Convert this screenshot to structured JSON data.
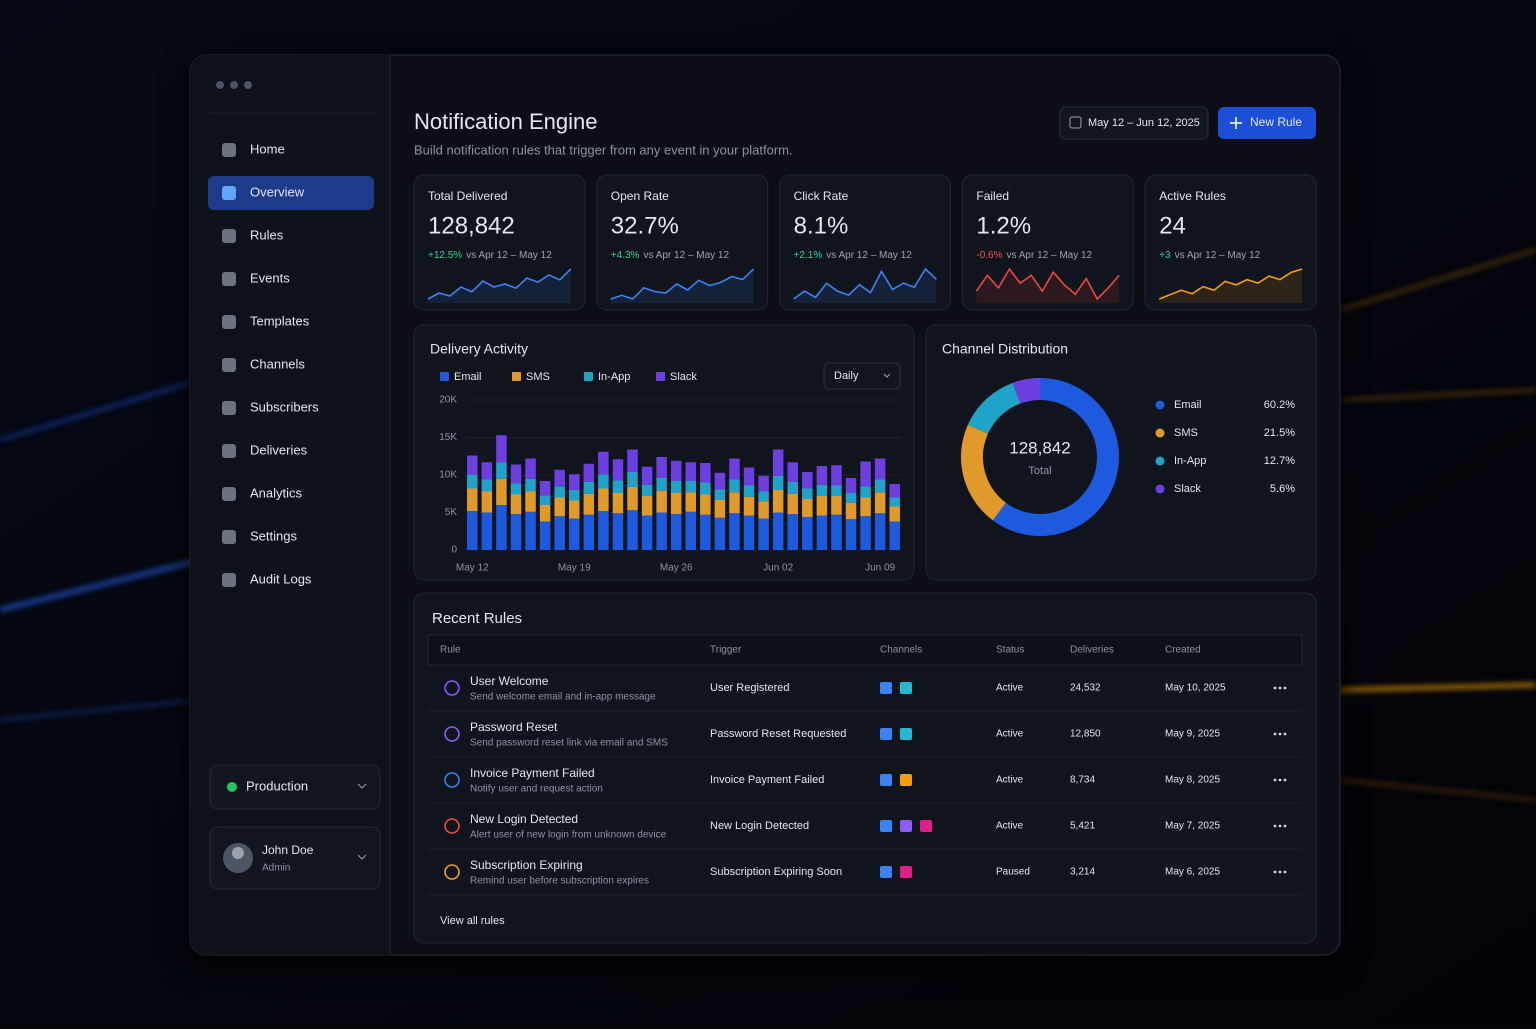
{
  "sidebar": {
    "nav": [
      "Home",
      "Overview",
      "Rules",
      "Events",
      "Templates",
      "Channels",
      "Subscribers",
      "Deliveries",
      "Analytics",
      "Settings",
      "Audit Logs"
    ],
    "active": 1,
    "environment": "Production",
    "user_name": "John Doe",
    "user_role": "Admin"
  },
  "header": {
    "title": "Notification Engine",
    "subtitle": "Build notification rules that trigger from any event in your platform.",
    "date_range": "May 12 – Jun 12, 2025",
    "new_rule_button": "New Rule"
  },
  "kpis": [
    {
      "label": "Total Delivered",
      "value": "128,842",
      "change": "+12.5%",
      "comparison": "vs Apr 12 – May 12",
      "change_color": "#34d399",
      "line_color": "#3b82f6",
      "trend": [
        3,
        4,
        3.5,
        5,
        4.2,
        6,
        5,
        5.5,
        4.8,
        6.5,
        5.8,
        7,
        6.2,
        8
      ]
    },
    {
      "label": "Open Rate",
      "value": "32.7%",
      "change": "+4.3%",
      "comparison": "vs Apr 12 – May 12",
      "change_color": "#34d399",
      "line_color": "#3b82f6",
      "trend": [
        3,
        3.5,
        3,
        4.5,
        4,
        3.8,
        5,
        4.2,
        5.5,
        4.8,
        5.2,
        6,
        5.6,
        7
      ]
    },
    {
      "label": "Click Rate",
      "value": "8.1%",
      "change": "+2.1%",
      "comparison": "vs Apr 12 – May 12",
      "change_color": "#34d399",
      "line_color": "#3b82f6",
      "trend": [
        3,
        4,
        3.2,
        5,
        4,
        3.5,
        4.8,
        3.8,
        6.5,
        4.2,
        5,
        4.5,
        6.8,
        5.5
      ]
    },
    {
      "label": "Failed",
      "value": "1.2%",
      "change": "-0.6%",
      "comparison": "vs Apr 12 – May 12",
      "change_color": "#f05252",
      "line_color": "#ef4444",
      "trend": [
        5,
        6,
        5.2,
        6.4,
        5.5,
        6,
        5,
        6.2,
        5.4,
        4.8,
        5.8,
        4.5,
        5.2,
        6
      ]
    },
    {
      "label": "Active Rules",
      "value": "24",
      "change": "+3",
      "comparison": "vs Apr 12 – May 12",
      "change_color": "#34d399",
      "line_color": "#f59e0b",
      "trend": [
        3,
        3.5,
        4,
        3.6,
        4.4,
        4,
        5,
        4.6,
        5.2,
        4.8,
        5.6,
        5.2,
        6,
        6.4
      ]
    }
  ],
  "chart_data": [
    {
      "type": "stacked_bar",
      "title": "Delivery Activity",
      "period": "Daily",
      "categories": [
        "May 12",
        null,
        null,
        null,
        null,
        null,
        null,
        "May 19",
        null,
        null,
        null,
        null,
        null,
        null,
        "May 26",
        null,
        null,
        null,
        null,
        null,
        null,
        "Jun 02",
        null,
        null,
        null,
        null,
        null,
        null,
        "Jun 09",
        null
      ],
      "series": [
        {
          "name": "Email",
          "color": "#1d5ae0",
          "values": [
            5200,
            5000,
            6000,
            4800,
            5100,
            3800,
            4500,
            4200,
            4700,
            5200,
            4900,
            5300,
            4600,
            5000,
            4800,
            5100,
            4700,
            4300,
            4900,
            4600,
            4200,
            5000,
            4800,
            4400,
            4600,
            4700,
            4100,
            4500,
            4900,
            3800
          ]
        },
        {
          "name": "SMS",
          "color": "#e09a2a",
          "values": [
            3000,
            2800,
            3500,
            2600,
            2700,
            2200,
            2500,
            2400,
            2800,
            3000,
            2700,
            3100,
            2600,
            2900,
            2800,
            2600,
            2700,
            2400,
            2800,
            2500,
            2300,
            3000,
            2700,
            2400,
            2600,
            2500,
            2200,
            2500,
            2800,
            2000
          ]
        },
        {
          "name": "In-App",
          "color": "#1fa3c9",
          "values": [
            1800,
            1600,
            2200,
            1500,
            1700,
            1300,
            1500,
            1400,
            1600,
            1900,
            1700,
            2000,
            1500,
            1700,
            1600,
            1500,
            1600,
            1400,
            1700,
            1500,
            1300,
            1900,
            1600,
            1400,
            1500,
            1400,
            1300,
            1500,
            1700,
            1200
          ]
        },
        {
          "name": "Slack",
          "color": "#6d3fe0",
          "values": [
            2600,
            2300,
            3600,
            2500,
            2700,
            1900,
            2200,
            2100,
            2400,
            3000,
            2800,
            3000,
            2400,
            2800,
            2700,
            2500,
            2600,
            2200,
            2800,
            2400,
            2100,
            3500,
            2600,
            2200,
            2500,
            2700,
            2000,
            3300,
            2800,
            1800
          ]
        }
      ],
      "ylim": [
        0,
        20000
      ],
      "yticks": [
        0,
        {
          "value": 5000,
          "label": "5K"
        },
        {
          "value": 10000,
          "label": "10K"
        },
        {
          "value": 15000,
          "label": "15K"
        },
        {
          "value": 20000,
          "label": "20K"
        }
      ]
    },
    {
      "type": "donut",
      "title": "Channel Distribution",
      "center_value": "128,842",
      "center_label": "Total",
      "categories": [
        "Email",
        "SMS",
        "In-App",
        "Slack"
      ],
      "values": [
        60.2,
        21.5,
        12.7,
        5.6
      ],
      "value_labels": [
        "60.2%",
        "21.5%",
        "12.7%",
        "5.6%"
      ],
      "colors": [
        "#1d5ae0",
        "#e09a2a",
        "#1fa3c9",
        "#6d3fe0"
      ]
    }
  ],
  "recent_rules": {
    "title": "Recent Rules",
    "columns": [
      "Rule",
      "Trigger",
      "Channels",
      "Status",
      "Deliveries",
      "Created"
    ],
    "rows": [
      {
        "name": "User Welcome",
        "description": "Send welcome email and in-app message",
        "trigger": "User Registered",
        "channels": [
          "#3b82f6",
          "#22b8cf"
        ],
        "status": "Active",
        "status_color": "#34d399",
        "deliveries": "24,532",
        "created": "May 10, 2025",
        "icon_color": "#8b5cf6"
      },
      {
        "name": "Password Reset",
        "description": "Send password reset link via email and SMS",
        "trigger": "Password Reset Requested",
        "channels": [
          "#3b82f6",
          "#22b8cf"
        ],
        "status": "Active",
        "status_color": "#34d399",
        "deliveries": "12,850",
        "created": "May 9, 2025",
        "icon_color": "#8b5cf6"
      },
      {
        "name": "Invoice Payment Failed",
        "description": "Notify user and request action",
        "trigger": "Invoice Payment Failed",
        "channels": [
          "#3b82f6",
          "#f59e0b"
        ],
        "status": "Active",
        "status_color": "#34d399",
        "deliveries": "8,734",
        "created": "May 8, 2025",
        "icon_color": "#3b82f6"
      },
      {
        "name": "New Login Detected",
        "description": "Alert user of new login from unknown device",
        "trigger": "New Login Detected",
        "channels": [
          "#3b82f6",
          "#8b5cf6",
          "#e11d8a"
        ],
        "status": "Active",
        "status_color": "#34d399",
        "deliveries": "5,421",
        "created": "May 7, 2025",
        "icon_color": "#ef4444"
      },
      {
        "name": "Subscription Expiring",
        "description": "Remind user before subscription expires",
        "trigger": "Subscription Expiring Soon",
        "channels": [
          "#3b82f6",
          "#e11d8a"
        ],
        "status": "Paused",
        "status_color": "#f59e0b",
        "deliveries": "3,214",
        "created": "May 6, 2025",
        "icon_color": "#f59e0b"
      }
    ],
    "link": "View all rules"
  }
}
